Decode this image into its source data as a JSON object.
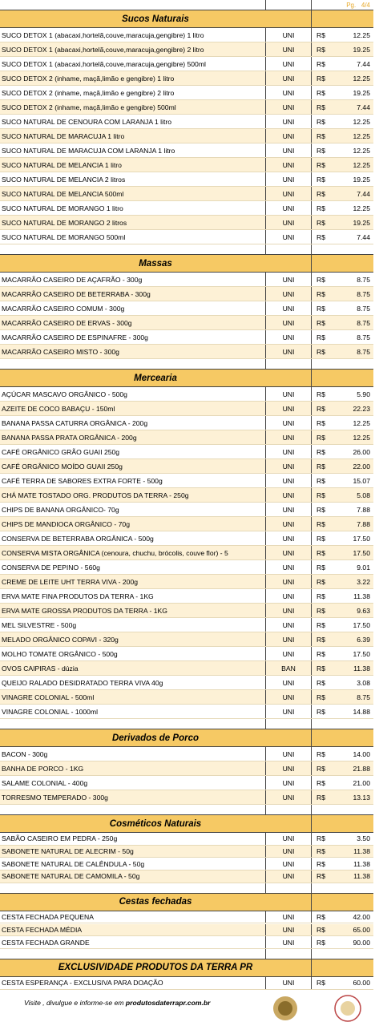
{
  "header": {
    "page": "Pg.",
    "page_num": "4/4"
  },
  "sections": [
    {
      "title": "Sucos Naturais",
      "items": [
        {
          "name": "SUCO DETOX 1 (abacaxi,hortelã,couve,maracuja,gengibre) 1 litro",
          "unit": "UNI",
          "currency": "R$",
          "price": "12.25"
        },
        {
          "name": "SUCO DETOX 1 (abacaxi,hortelã,couve,maracuja,gengibre) 2 litro",
          "unit": "UNI",
          "currency": "R$",
          "price": "19.25"
        },
        {
          "name": "SUCO DETOX 1 (abacaxi,hortelã,couve,maracuja,gengibre) 500ml",
          "unit": "UNI",
          "currency": "R$",
          "price": "7.44"
        },
        {
          "name": "SUCO DETOX 2 (inhame, maçã,limão e gengibre) 1 litro",
          "unit": "UNI",
          "currency": "R$",
          "price": "12.25"
        },
        {
          "name": "SUCO DETOX 2 (inhame, maçã,limão e gengibre) 2 litro",
          "unit": "UNI",
          "currency": "R$",
          "price": "19.25"
        },
        {
          "name": "SUCO DETOX 2 (inhame, maçã,limão e gengibre) 500ml",
          "unit": "UNI",
          "currency": "R$",
          "price": "7.44"
        },
        {
          "name": "SUCO NATURAL DE CENOURA COM LARANJA 1 litro",
          "unit": "UNI",
          "currency": "R$",
          "price": "12.25"
        },
        {
          "name": "SUCO NATURAL DE MARACUJA 1 litro",
          "unit": "UNI",
          "currency": "R$",
          "price": "12.25"
        },
        {
          "name": "SUCO NATURAL DE MARACUJA COM LARANJA 1 litro",
          "unit": "UNI",
          "currency": "R$",
          "price": "12.25"
        },
        {
          "name": "SUCO NATURAL DE MELANCIA 1 litro",
          "unit": "UNI",
          "currency": "R$",
          "price": "12.25"
        },
        {
          "name": "SUCO NATURAL DE MELANCIA 2 litros",
          "unit": "UNI",
          "currency": "R$",
          "price": "19.25"
        },
        {
          "name": "SUCO NATURAL DE MELANCIA 500ml",
          "unit": "UNI",
          "currency": "R$",
          "price": "7.44"
        },
        {
          "name": "SUCO NATURAL DE MORANGO 1 litro",
          "unit": "UNI",
          "currency": "R$",
          "price": "12.25"
        },
        {
          "name": "SUCO NATURAL DE MORANGO 2 litros",
          "unit": "UNI",
          "currency": "R$",
          "price": "19.25"
        },
        {
          "name": "SUCO NATURAL DE MORANGO 500ml",
          "unit": "UNI",
          "currency": "R$",
          "price": "7.44"
        }
      ]
    },
    {
      "title": "Massas",
      "items": [
        {
          "name": "MACARRÃO CASEIRO DE AÇAFRÃO - 300g",
          "unit": "UNI",
          "currency": "R$",
          "price": "8.75"
        },
        {
          "name": "MACARRÃO CASEIRO DE BETERRABA - 300g",
          "unit": "UNI",
          "currency": "R$",
          "price": "8.75"
        },
        {
          "name": "MACARRÃO CASEIRO COMUM - 300g",
          "unit": "UNI",
          "currency": "R$",
          "price": "8.75"
        },
        {
          "name": "MACARRÃO CASEIRO DE ERVAS - 300g",
          "unit": "UNI",
          "currency": "R$",
          "price": "8.75"
        },
        {
          "name": "MACARRÃO CASEIRO DE ESPINAFRE - 300g",
          "unit": "UNI",
          "currency": "R$",
          "price": "8.75"
        },
        {
          "name": "MACARRÃO CASEIRO MISTO - 300g",
          "unit": "UNI",
          "currency": "R$",
          "price": "8.75"
        }
      ]
    },
    {
      "title": "Mercearia",
      "items": [
        {
          "name": "AÇÚCAR MASCAVO ORGÂNICO - 500g",
          "unit": "UNI",
          "currency": "R$",
          "price": "5.90"
        },
        {
          "name": "AZEITE DE COCO BABAÇU - 150ml",
          "unit": "UNI",
          "currency": "R$",
          "price": "22.23"
        },
        {
          "name": "BANANA PASSA CATURRA ORGÂNICA - 200g",
          "unit": "UNI",
          "currency": "R$",
          "price": "12.25"
        },
        {
          "name": "BANANA PASSA PRATA ORGÂNICA - 200g",
          "unit": "UNI",
          "currency": "R$",
          "price": "12.25"
        },
        {
          "name": "CAFÉ ORGÂNICO GRÃO GUAII 250g",
          "unit": "UNI",
          "currency": "R$",
          "price": "26.00"
        },
        {
          "name": "CAFÉ ORGÂNICO MOÍDO GUAII 250g",
          "unit": "UNI",
          "currency": "R$",
          "price": "22.00"
        },
        {
          "name": "CAFÉ TERRA DE SABORES EXTRA FORTE - 500g",
          "unit": "UNI",
          "currency": "R$",
          "price": "15.07"
        },
        {
          "name": "CHÁ MATE TOSTADO ORG. PRODUTOS DA TERRA - 250g",
          "unit": "UNI",
          "currency": "R$",
          "price": "5.08"
        },
        {
          "name": "CHIPS DE BANANA  ORGÂNICO- 70g",
          "unit": "UNI",
          "currency": "R$",
          "price": "7.88"
        },
        {
          "name": "CHIPS DE MANDIOCA ORGÂNICO - 70g",
          "unit": "UNI",
          "currency": "R$",
          "price": "7.88"
        },
        {
          "name": "CONSERVA DE BETERRABA  ORGÂNICA - 500g",
          "unit": "UNI",
          "currency": "R$",
          "price": "17.50"
        },
        {
          "name": "CONSERVA MISTA ORGÂNICA (cenoura, chuchu, brócolis, couve flor) - 5",
          "unit": "UNI",
          "currency": "R$",
          "price": "17.50"
        },
        {
          "name": "CONSERVA DE PEPINO - 560g",
          "unit": "UNI",
          "currency": "R$",
          "price": "9.01"
        },
        {
          "name": "CREME DE LEITE UHT TERRA VIVA - 200g",
          "unit": "UNI",
          "currency": "R$",
          "price": "3.22"
        },
        {
          "name": "ERVA MATE FINA PRODUTOS DA TERRA - 1KG",
          "unit": "UNI",
          "currency": "R$",
          "price": "11.38"
        },
        {
          "name": "ERVA MATE GROSSA PRODUTOS DA TERRA - 1KG",
          "unit": "UNI",
          "currency": "R$",
          "price": "9.63"
        },
        {
          "name": "MEL SILVESTRE -  500g",
          "unit": "UNI",
          "currency": "R$",
          "price": "17.50"
        },
        {
          "name": "MELADO ORGÂNICO COPAVI - 320g",
          "unit": "UNI",
          "currency": "R$",
          "price": "6.39"
        },
        {
          "name": "MOLHO TOMATE ORGÂNICO - 500g",
          "unit": "UNI",
          "currency": "R$",
          "price": "17.50"
        },
        {
          "name": "OVOS CAIPIRAS - dúzia",
          "unit": "BAN",
          "currency": "R$",
          "price": "11.38"
        },
        {
          "name": "QUEIJO RALADO DESIDRATADO TERRA VIVA 40g",
          "unit": "UNI",
          "currency": "R$",
          "price": "3.08"
        },
        {
          "name": "VINAGRE COLONIAL - 500ml",
          "unit": "UNI",
          "currency": "R$",
          "price": "8.75"
        },
        {
          "name": "VINAGRE COLONIAL - 1000ml",
          "unit": "UNI",
          "currency": "R$",
          "price": "14.88"
        }
      ]
    },
    {
      "title": "Derivados de Porco",
      "items": [
        {
          "name": "BACON - 300g",
          "unit": "UNI",
          "currency": "R$",
          "price": "14.00"
        },
        {
          "name": "BANHA DE PORCO - 1KG",
          "unit": "UNI",
          "currency": "R$",
          "price": "21.88"
        },
        {
          "name": "SALAME COLONIAL - 400g",
          "unit": "UNI",
          "currency": "R$",
          "price": "21.00"
        },
        {
          "name": "TORRESMO TEMPERADO - 300g",
          "unit": "UNI",
          "currency": "R$",
          "price": "13.13"
        }
      ]
    },
    {
      "title": "Cosméticos Naturais",
      "items": [
        {
          "name": "SABÃO CASEIRO EM PEDRA - 250g",
          "unit": "UNI",
          "currency": "R$",
          "price": "3.50"
        },
        {
          "name": "SABONETE NATURAL DE ALECRIM - 50g",
          "unit": "UNI",
          "currency": "R$",
          "price": "11.38"
        },
        {
          "name": "SABONETE NATURAL DE CALÊNDULA - 50g",
          "unit": "UNI",
          "currency": "R$",
          "price": "11.38"
        },
        {
          "name": "SABONETE NATURAL DE CAMOMILA - 50g",
          "unit": "UNI",
          "currency": "R$",
          "price": "11.38"
        }
      ]
    },
    {
      "title": "Cestas fechadas",
      "items": [
        {
          "name": "CESTA FECHADA PEQUENA",
          "unit": "UNI",
          "currency": "R$",
          "price": "42.00"
        },
        {
          "name": "CESTA FECHADA MÉDIA",
          "unit": "UNI",
          "currency": "R$",
          "price": "65.00"
        },
        {
          "name": "CESTA FECHADA GRANDE",
          "unit": "UNI",
          "currency": "R$",
          "price": "90.00"
        }
      ]
    },
    {
      "title": "EXCLUSIVIDADE PRODUTOS DA TERRA PR",
      "items": [
        {
          "name": "CESTA ESPERANÇA - EXCLUSIVA PARA DOAÇÃO",
          "unit": "UNI",
          "currency": "R$",
          "price": "60.00"
        }
      ]
    }
  ],
  "footer": {
    "text": "Visite , divulgue e informe-se em ",
    "site": "produtosdaterrapr.com.br"
  }
}
